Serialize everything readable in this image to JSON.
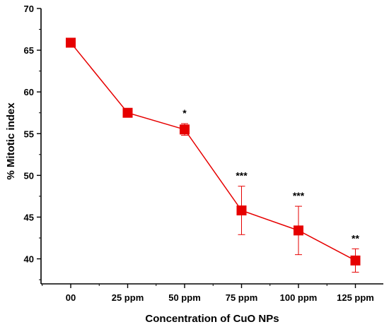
{
  "chart_data": {
    "type": "line",
    "title": "",
    "xlabel": "Concentration of CuO NPs",
    "ylabel": "% Mitotic index",
    "categories": [
      "00",
      "25 ppm",
      "50 ppm",
      "75 ppm",
      "100 ppm",
      "125 ppm"
    ],
    "ylim": [
      37,
      70
    ],
    "yticks": [
      40,
      45,
      50,
      55,
      60,
      65,
      70
    ],
    "series": [
      {
        "values": [
          65.9,
          57.5,
          55.5,
          45.8,
          43.4,
          39.8
        ],
        "error": [
          0,
          0,
          0.7,
          2.9,
          2.9,
          1.4
        ],
        "significance": [
          "",
          "",
          "*",
          "***",
          "***",
          "**"
        ]
      }
    ],
    "color": "#e60000",
    "marker": "square",
    "grid": false,
    "legend": "none"
  }
}
